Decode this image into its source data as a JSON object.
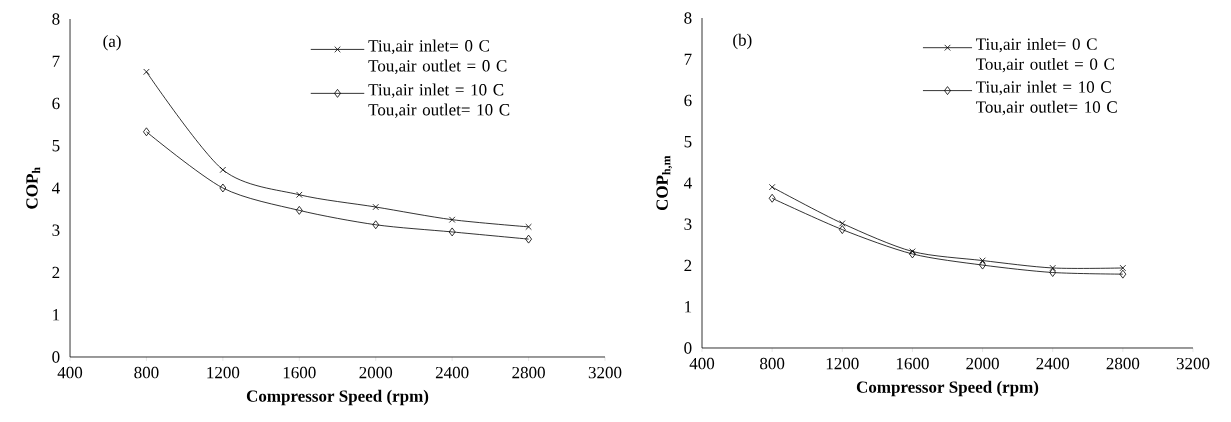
{
  "chart_data": [
    {
      "type": "line",
      "xlabel": "Compressor Speed (rpm)",
      "ylabel": "COP$_{h}$",
      "annotations": [
        "(a)"
      ],
      "x": [
        800,
        1200,
        1600,
        2000,
        2400,
        2800
      ],
      "xlim": [
        400,
        3200
      ],
      "xticks": [
        400,
        800,
        1200,
        1600,
        2000,
        2400,
        2800,
        3200
      ],
      "ylim": [
        0,
        8
      ],
      "yticks": [
        0,
        1,
        2,
        3,
        4,
        5,
        6,
        7,
        8
      ],
      "legend": "top right",
      "grid": false,
      "series": [
        {
          "name": "Tiu,air inlet= 0 C Tou,air outlet = 0 C",
          "color": "#000000",
          "marker": "cross",
          "values": [
            6.75,
            4.43,
            3.84,
            3.55,
            3.25,
            3.08
          ]
        },
        {
          "name": "Tiu,air inlet = 10 C Tou,air outlet= 10 C",
          "color": "#000000",
          "marker": "diamond",
          "values": [
            5.33,
            4.0,
            3.47,
            3.13,
            2.96,
            2.79
          ]
        }
      ]
    },
    {
      "type": "line",
      "xlabel": "Compressor Speed (rpm)",
      "ylabel": "COP$_{h,m}$",
      "annotations": [
        "(b)"
      ],
      "x": [
        800,
        1200,
        1600,
        2000,
        2400,
        2800
      ],
      "xlim": [
        400,
        3200
      ],
      "xticks": [
        400,
        800,
        1200,
        1600,
        2000,
        2400,
        2800,
        3200
      ],
      "ylim": [
        0,
        8
      ],
      "yticks": [
        0,
        1,
        2,
        3,
        4,
        5,
        6,
        7,
        8
      ],
      "legend": "top right",
      "grid": false,
      "series": [
        {
          "name": "Tiu,air inlet= 0 C Tou,air outlet = 0 C",
          "color": "#000000",
          "marker": "cross",
          "values": [
            3.9,
            3.02,
            2.34,
            2.12,
            1.94,
            1.94
          ]
        },
        {
          "name": "Tiu,air inlet = 10 C Tou,air outlet= 10 C",
          "color": "#000000",
          "marker": "diamond",
          "values": [
            3.63,
            2.87,
            2.28,
            2.01,
            1.83,
            1.79
          ]
        }
      ]
    }
  ]
}
